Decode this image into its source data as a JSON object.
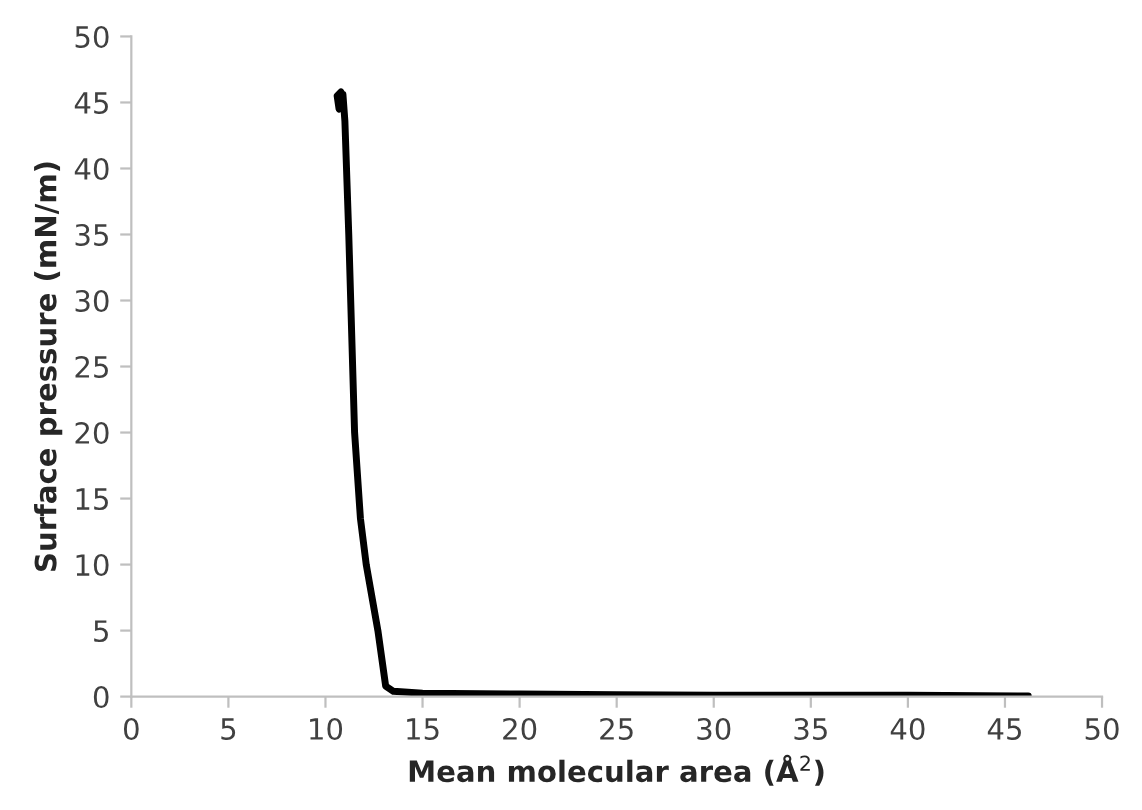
{
  "chart_data": {
    "type": "line",
    "xlabel": "Mean molecular area (Å$^{2}$)",
    "ylabel": "Surface pressure (mN/m)",
    "xlim": [
      0,
      50
    ],
    "xticks": [
      0,
      5,
      10,
      15,
      20,
      25,
      30,
      35,
      40,
      45,
      50
    ],
    "ylim": [
      0,
      50
    ],
    "yticks": [
      0,
      5,
      10,
      15,
      20,
      25,
      30,
      35,
      40,
      45,
      50
    ],
    "grid": false,
    "marker": "none",
    "line_style": "solid",
    "series": [
      {
        "color": "#000000",
        "x": [
          46.2,
          40,
          35,
          30,
          25,
          20,
          15,
          13.5,
          13.1,
          12.7,
          12.1,
          11.8,
          11.5,
          11.2,
          11.0,
          10.9,
          10.8,
          10.7,
          10.6,
          10.8,
          10.8
        ],
        "values": [
          0.05,
          0.1,
          0.1,
          0.1,
          0.15,
          0.2,
          0.25,
          0.4,
          0.8,
          5,
          10,
          13.5,
          20,
          35,
          43.6,
          45.6,
          44.8,
          44.5,
          45.5,
          45.8,
          44.8
        ]
      }
    ]
  }
}
